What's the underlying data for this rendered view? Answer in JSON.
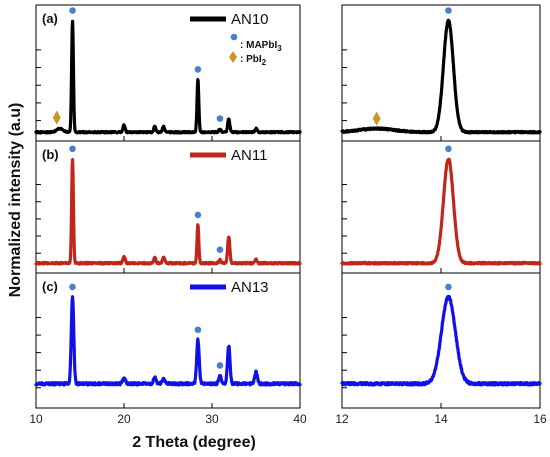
{
  "chart_data": {
    "type": "line",
    "xlabel": "2 Theta (degree)",
    "ylabel": "Normalized intensity (a.u)",
    "left": {
      "xlim": [
        10,
        40
      ],
      "xticks": [
        "10",
        "20",
        "30",
        "40"
      ],
      "xtick_values": [
        10,
        20,
        30,
        40
      ]
    },
    "right": {
      "xlim": [
        12,
        16
      ],
      "xticks": [
        "12",
        "14",
        "16"
      ],
      "xtick_values": [
        12,
        14,
        16
      ]
    },
    "key": {
      "mapbi3": {
        "prefix": ": MAPbI",
        "sub": "3",
        "color": "#4a7fd0"
      },
      "pbi2": {
        "prefix": ": PbI",
        "sub": "2",
        "color": "#c8952a"
      }
    },
    "series": [
      {
        "name": "AN10",
        "panel_label": "(a)",
        "color": "#000000",
        "baseline": 0.04,
        "noise": 0.006,
        "peaks": [
          {
            "x": 12.7,
            "h": 0.03,
            "w": 0.35
          },
          {
            "x": 14.15,
            "h": 0.93,
            "w": 0.1
          },
          {
            "x": 20.0,
            "h": 0.06,
            "w": 0.12
          },
          {
            "x": 23.5,
            "h": 0.05,
            "w": 0.12
          },
          {
            "x": 24.5,
            "h": 0.05,
            "w": 0.12
          },
          {
            "x": 28.4,
            "h": 0.44,
            "w": 0.1
          },
          {
            "x": 30.9,
            "h": 0.03,
            "w": 0.12
          },
          {
            "x": 31.9,
            "h": 0.11,
            "w": 0.12
          },
          {
            "x": 35.0,
            "h": 0.03,
            "w": 0.12
          }
        ],
        "mapbi3_markers": [
          14.15,
          28.4,
          30.9
        ],
        "mapbi3_right": [
          14.15
        ],
        "pbi2_markers": [
          12.7
        ],
        "pbi2_right": [
          12.7
        ]
      },
      {
        "name": "AN11",
        "panel_label": "(b)",
        "color": "#c0261a",
        "baseline": 0.05,
        "noise": 0.007,
        "peaks": [
          {
            "x": 14.15,
            "h": 0.9,
            "w": 0.1
          },
          {
            "x": 20.0,
            "h": 0.06,
            "w": 0.12
          },
          {
            "x": 23.5,
            "h": 0.05,
            "w": 0.12
          },
          {
            "x": 24.5,
            "h": 0.05,
            "w": 0.12
          },
          {
            "x": 28.4,
            "h": 0.33,
            "w": 0.1
          },
          {
            "x": 30.9,
            "h": 0.03,
            "w": 0.12
          },
          {
            "x": 31.9,
            "h": 0.23,
            "w": 0.12
          },
          {
            "x": 35.0,
            "h": 0.03,
            "w": 0.12
          }
        ],
        "mapbi3_markers": [
          14.15,
          28.4,
          30.9
        ],
        "mapbi3_right": [
          14.15
        ],
        "pbi2_markers": [],
        "pbi2_right": []
      },
      {
        "name": "AN13",
        "panel_label": "(c)",
        "color": "#1010e8",
        "baseline": 0.17,
        "noise": 0.01,
        "peaks": [
          {
            "x": 14.15,
            "h": 0.73,
            "w": 0.14
          },
          {
            "x": 20.0,
            "h": 0.05,
            "w": 0.15
          },
          {
            "x": 23.5,
            "h": 0.05,
            "w": 0.15
          },
          {
            "x": 24.5,
            "h": 0.04,
            "w": 0.15
          },
          {
            "x": 28.4,
            "h": 0.37,
            "w": 0.14
          },
          {
            "x": 30.9,
            "h": 0.07,
            "w": 0.14
          },
          {
            "x": 31.9,
            "h": 0.32,
            "w": 0.14
          },
          {
            "x": 35.0,
            "h": 0.1,
            "w": 0.15
          }
        ],
        "mapbi3_markers": [
          14.15,
          28.4,
          30.9
        ],
        "mapbi3_right": [
          14.15
        ],
        "pbi2_markers": [],
        "pbi2_right": []
      }
    ]
  }
}
